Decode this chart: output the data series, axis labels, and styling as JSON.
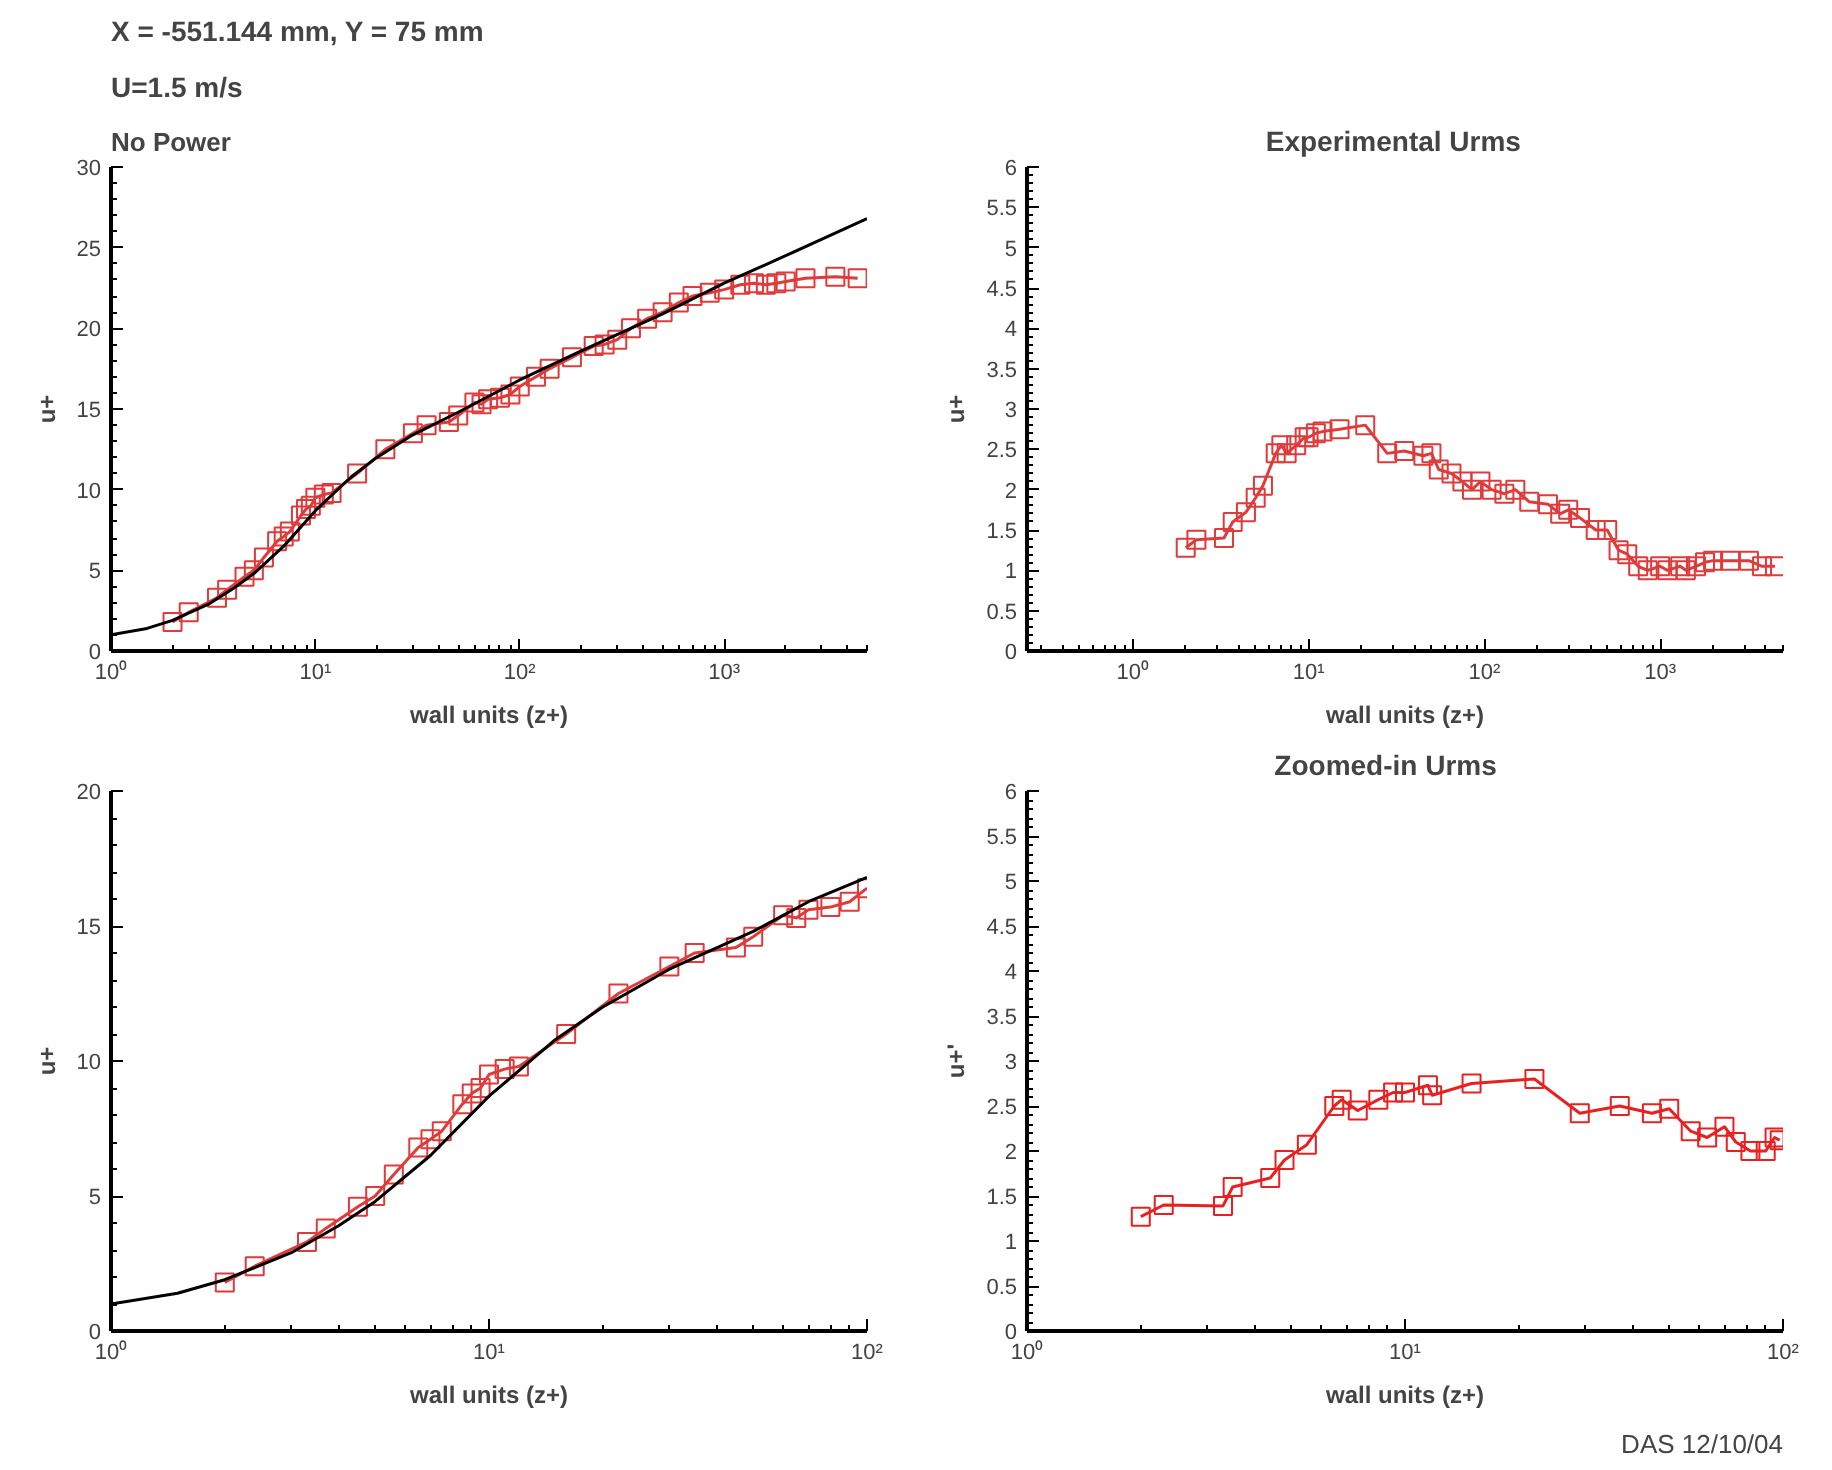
{
  "chart_data": [
    {
      "type": "line",
      "title": "X = -551.144 mm, Y = 75 mm",
      "subtitle": "U=1.5 m/s",
      "annotations": [
        "No Power"
      ],
      "xlabel": "wall units (z+)",
      "ylabel": "u+",
      "log": "x",
      "grid": false,
      "line_style": "solid",
      "xlim": [
        1,
        5000
      ],
      "xticks": [
        {
          "value": 1,
          "label": "10⁰"
        },
        {
          "value": 10,
          "label": "10¹"
        },
        {
          "value": 100,
          "label": "10²"
        },
        {
          "value": 1000,
          "label": "10³"
        }
      ],
      "ylim": [
        0,
        30
      ],
      "yticks": [
        0,
        5,
        10,
        15,
        20,
        25,
        30
      ],
      "series": [
        {
          "color": "#e03a3a",
          "marker": "square",
          "x": [
            2,
            2.4,
            3.3,
            3.7,
            4.5,
            5,
            5.6,
            6.5,
            7,
            7.5,
            8.5,
            9,
            9.5,
            10,
            11,
            12,
            16,
            22,
            30,
            35,
            45,
            50,
            60,
            65,
            70,
            80,
            90,
            100,
            120,
            140,
            180,
            230,
            260,
            300,
            350,
            420,
            500,
            600,
            700,
            850,
            1000,
            1200,
            1400,
            1600,
            1800,
            2000,
            2500,
            3500,
            4500
          ],
          "values": [
            1.8,
            2.4,
            3.3,
            3.8,
            4.6,
            5.0,
            5.8,
            6.8,
            7.1,
            7.4,
            8.4,
            8.8,
            9.0,
            9.5,
            9.7,
            9.8,
            11.0,
            12.5,
            13.5,
            14.0,
            14.2,
            14.6,
            15.4,
            15.3,
            15.6,
            15.7,
            15.9,
            16.4,
            17.0,
            17.5,
            18.2,
            18.9,
            19.0,
            19.3,
            20.0,
            20.6,
            21.0,
            21.6,
            22.0,
            22.2,
            22.4,
            22.7,
            22.8,
            22.7,
            22.8,
            22.9,
            23.1,
            23.2,
            23.1
          ]
        },
        {
          "color": "#000000",
          "marker": "none",
          "x": [
            1,
            1.5,
            2,
            3,
            4,
            5,
            7,
            10,
            15,
            20,
            30,
            50,
            100,
            200,
            500,
            1000,
            2000,
            5000
          ],
          "values": [
            1.0,
            1.4,
            1.9,
            2.9,
            3.9,
            4.8,
            6.5,
            8.7,
            10.8,
            12.0,
            13.4,
            14.8,
            16.8,
            18.6,
            20.9,
            22.8,
            24.5,
            26.8
          ]
        }
      ]
    },
    {
      "type": "line",
      "title": "Experimental    Urms",
      "xlabel": "wall units (z+)",
      "ylabel": "u+",
      "log": "x",
      "grid": false,
      "line_style": "solid",
      "xlim": [
        0.25,
        5000
      ],
      "xticks": [
        {
          "value": 1,
          "label": "10⁰"
        },
        {
          "value": 10,
          "label": "10¹"
        },
        {
          "value": 100,
          "label": "10²"
        },
        {
          "value": 1000,
          "label": "10³"
        }
      ],
      "ylim": [
        0,
        6
      ],
      "yticks": [
        0,
        0.5,
        1,
        1.5,
        2,
        2.5,
        3,
        3.5,
        4,
        4.5,
        5,
        5.5,
        6
      ],
      "series": [
        {
          "color": "#e03a3a",
          "marker": "square",
          "x": [
            2,
            2.3,
            3.3,
            3.7,
            4.4,
            5,
            5.5,
            6.5,
            7,
            7.5,
            8.5,
            9.5,
            10,
            11,
            12,
            15,
            21,
            28,
            35,
            45,
            50,
            55,
            65,
            75,
            85,
            95,
            110,
            130,
            150,
            180,
            230,
            270,
            300,
            350,
            430,
            500,
            580,
            650,
            750,
            850,
            1000,
            1100,
            1300,
            1400,
            1600,
            1800,
            2000,
            2500,
            3200,
            3800,
            4500
          ],
          "values": [
            1.28,
            1.38,
            1.4,
            1.6,
            1.72,
            1.9,
            2.05,
            2.45,
            2.55,
            2.45,
            2.55,
            2.65,
            2.65,
            2.7,
            2.72,
            2.75,
            2.8,
            2.45,
            2.48,
            2.42,
            2.45,
            2.25,
            2.2,
            2.1,
            2.0,
            2.1,
            2.0,
            1.95,
            2.0,
            1.85,
            1.82,
            1.7,
            1.75,
            1.65,
            1.5,
            1.5,
            1.25,
            1.2,
            1.05,
            1.0,
            1.05,
            1.0,
            1.05,
            1.0,
            1.05,
            1.1,
            1.12,
            1.12,
            1.12,
            1.05,
            1.05
          ]
        }
      ]
    },
    {
      "type": "line",
      "xlabel": "wall units (z+)",
      "ylabel": "u+",
      "log": "x",
      "grid": false,
      "line_style": "solid",
      "xlim": [
        1,
        100
      ],
      "xticks": [
        {
          "value": 1,
          "label": "10⁰"
        },
        {
          "value": 10,
          "label": "10¹"
        },
        {
          "value": 100,
          "label": "10²"
        }
      ],
      "ylim": [
        0,
        20
      ],
      "yticks": [
        0,
        5,
        10,
        15,
        20
      ],
      "series": [
        {
          "color": "#e03a3a",
          "marker": "square",
          "x": [
            2,
            2.4,
            3.3,
            3.7,
            4.5,
            5,
            5.6,
            6.5,
            7,
            7.5,
            8.5,
            9,
            9.5,
            10,
            11,
            12,
            16,
            22,
            30,
            35,
            45,
            50,
            60,
            65,
            70,
            80,
            90,
            100
          ],
          "values": [
            1.8,
            2.4,
            3.3,
            3.8,
            4.6,
            5.0,
            5.8,
            6.8,
            7.1,
            7.4,
            8.4,
            8.8,
            9.0,
            9.5,
            9.7,
            9.8,
            11.0,
            12.5,
            13.5,
            14.0,
            14.2,
            14.6,
            15.4,
            15.3,
            15.6,
            15.7,
            15.9,
            16.4
          ]
        },
        {
          "color": "#000000",
          "marker": "none",
          "x": [
            1,
            1.5,
            2,
            3,
            4,
            5,
            7,
            10,
            15,
            20,
            30,
            50,
            70,
            100
          ],
          "values": [
            1.0,
            1.4,
            1.9,
            2.9,
            3.9,
            4.8,
            6.5,
            8.7,
            10.8,
            12.0,
            13.4,
            14.8,
            15.9,
            16.8
          ]
        }
      ]
    },
    {
      "type": "line",
      "title": "Zoomed-in      Urms",
      "annotations": [
        "DAS 12/10/04"
      ],
      "xlabel": "wall units (z+)",
      "ylabel": "u+'",
      "log": "x",
      "grid": false,
      "line_style": "solid",
      "xlim": [
        1,
        100
      ],
      "xticks": [
        {
          "value": 1,
          "label": "10⁰"
        },
        {
          "value": 10,
          "label": "10¹"
        },
        {
          "value": 100,
          "label": "10²"
        }
      ],
      "ylim": [
        0,
        6
      ],
      "yticks": [
        0,
        0.5,
        1,
        1.5,
        2,
        2.5,
        3,
        3.5,
        4,
        4.5,
        5,
        5.5,
        6
      ],
      "series": [
        {
          "color": "#e82020",
          "marker": "square",
          "x": [
            2,
            2.3,
            3.3,
            3.5,
            4.4,
            4.8,
            5.5,
            6.5,
            6.8,
            7.5,
            8.5,
            9.3,
            10,
            11.5,
            11.8,
            15,
            22,
            29,
            37,
            45,
            50,
            57,
            63,
            70,
            75,
            82,
            90,
            95,
            98
          ],
          "values": [
            1.27,
            1.4,
            1.39,
            1.6,
            1.7,
            1.9,
            2.07,
            2.5,
            2.57,
            2.45,
            2.57,
            2.65,
            2.65,
            2.73,
            2.62,
            2.75,
            2.8,
            2.42,
            2.5,
            2.42,
            2.47,
            2.22,
            2.15,
            2.27,
            2.1,
            2.0,
            2.0,
            2.15,
            2.12
          ]
        }
      ]
    }
  ]
}
